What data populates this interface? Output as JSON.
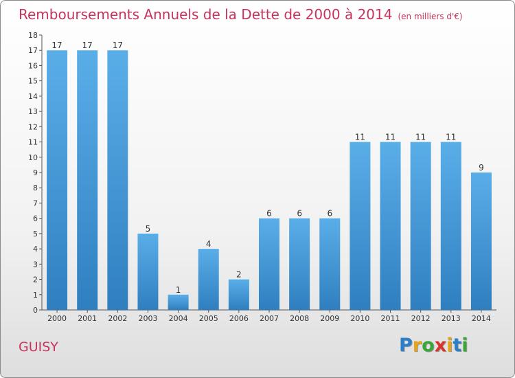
{
  "title": "Remboursements Annuels de la Dette de 2000 à 2014",
  "unit_note": "(en milliers d'€)",
  "city": "GUISY",
  "logo": {
    "letters": [
      "P",
      "r",
      "o",
      "x",
      "i",
      "t",
      "i"
    ],
    "colors": [
      "#2b7fc9",
      "#e8a317",
      "#3aa63a",
      "#d9342b",
      "#e8a317",
      "#2b7fc9",
      "#3aa63a"
    ]
  },
  "colors": {
    "bar_top": "#5aaee8",
    "bar_bottom": "#2f7fc0",
    "title": "#c7345b"
  },
  "chart_data": {
    "type": "bar",
    "categories": [
      "2000",
      "2001",
      "2002",
      "2003",
      "2004",
      "2005",
      "2006",
      "2007",
      "2008",
      "2009",
      "2010",
      "2011",
      "2012",
      "2013",
      "2014"
    ],
    "values": [
      17,
      17,
      17,
      5,
      1,
      4,
      2,
      6,
      6,
      6,
      11,
      11,
      11,
      11,
      9
    ],
    "title": "Remboursements Annuels de la Dette de 2000 à 2014",
    "xlabel": "",
    "ylabel": "",
    "ylim": [
      0,
      18
    ],
    "yticks": [
      0,
      1,
      2,
      3,
      4,
      5,
      6,
      7,
      8,
      9,
      10,
      11,
      12,
      13,
      14,
      15,
      16,
      17,
      18
    ],
    "grid": false,
    "data_labels": true
  }
}
